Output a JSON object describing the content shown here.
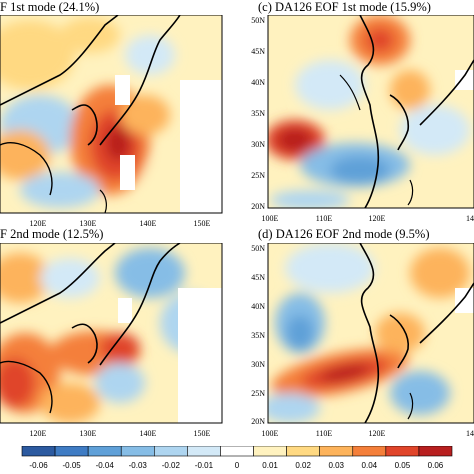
{
  "chart_data": [
    {
      "type": "heatmap",
      "title": "F 1st mode (24.1%)",
      "x_ticks": [
        "120E",
        "130E",
        "140E",
        "150E"
      ],
      "y_ticks": [],
      "xlim": [
        115,
        155
      ],
      "ylim": [
        20,
        50
      ],
      "pattern": "strong positive core over Korea / East China Sea (~125-132E, 27-38N), weaker negative to the west, mixed elsewhere"
    },
    {
      "type": "heatmap",
      "title": "(c) DA126 EOF 1st mode (15.9%)",
      "x_ticks": [
        "100E",
        "110E",
        "120E",
        "14"
      ],
      "y_ticks": [
        "50N",
        "45N",
        "40N",
        "35N",
        "30N",
        "25N",
        "20N"
      ],
      "xlim": [
        100,
        142
      ],
      "ylim": [
        20,
        50
      ],
      "pattern": "positive over Manchuria (~120-125E, 45-50N) and south China (~100-108E, 28-32N); negative band from ~110E to 125E at 24-30N"
    },
    {
      "type": "heatmap",
      "title": "F 2nd mode (12.5%)",
      "x_ticks": [
        "120E",
        "130E",
        "140E",
        "150E"
      ],
      "y_ticks": [],
      "xlim": [
        115,
        155
      ],
      "ylim": [
        20,
        50
      ],
      "pattern": "positive from southwest (~115-125E, 22-30N) to Korea / southern Japan (~130-135E, 32-36N); negative over the northeast"
    },
    {
      "type": "heatmap",
      "title": "(d) DA126 EOF 2nd mode (9.5%)",
      "x_ticks": [
        "100E",
        "110E",
        "120E",
        "14"
      ],
      "y_ticks": [
        "50N",
        "45N",
        "40N",
        "35N",
        "30N",
        "25N",
        "20N"
      ],
      "xlim": [
        100,
        142
      ],
      "ylim": [
        20,
        50
      ],
      "pattern": "strong positive diagonal band from ~104E 25N to ~120E 30N; negative over the north and along ~105E 30-35N"
    }
  ],
  "colorbar": {
    "labels": [
      "-0.06",
      "-0.05",
      "-0.04",
      "-0.03",
      "-0.02",
      "-0.01",
      "0",
      "0.01",
      "0.02",
      "0.03",
      "0.04",
      "0.05",
      "0.06"
    ],
    "colors": [
      "#2c5aa0",
      "#3f7cc4",
      "#5fa0d8",
      "#86bde6",
      "#aed5f0",
      "#d3e9f7",
      "#ffffff",
      "#fff2bf",
      "#ffd982",
      "#fdb35b",
      "#f47f3a",
      "#e0452a",
      "#b81f1f"
    ]
  }
}
